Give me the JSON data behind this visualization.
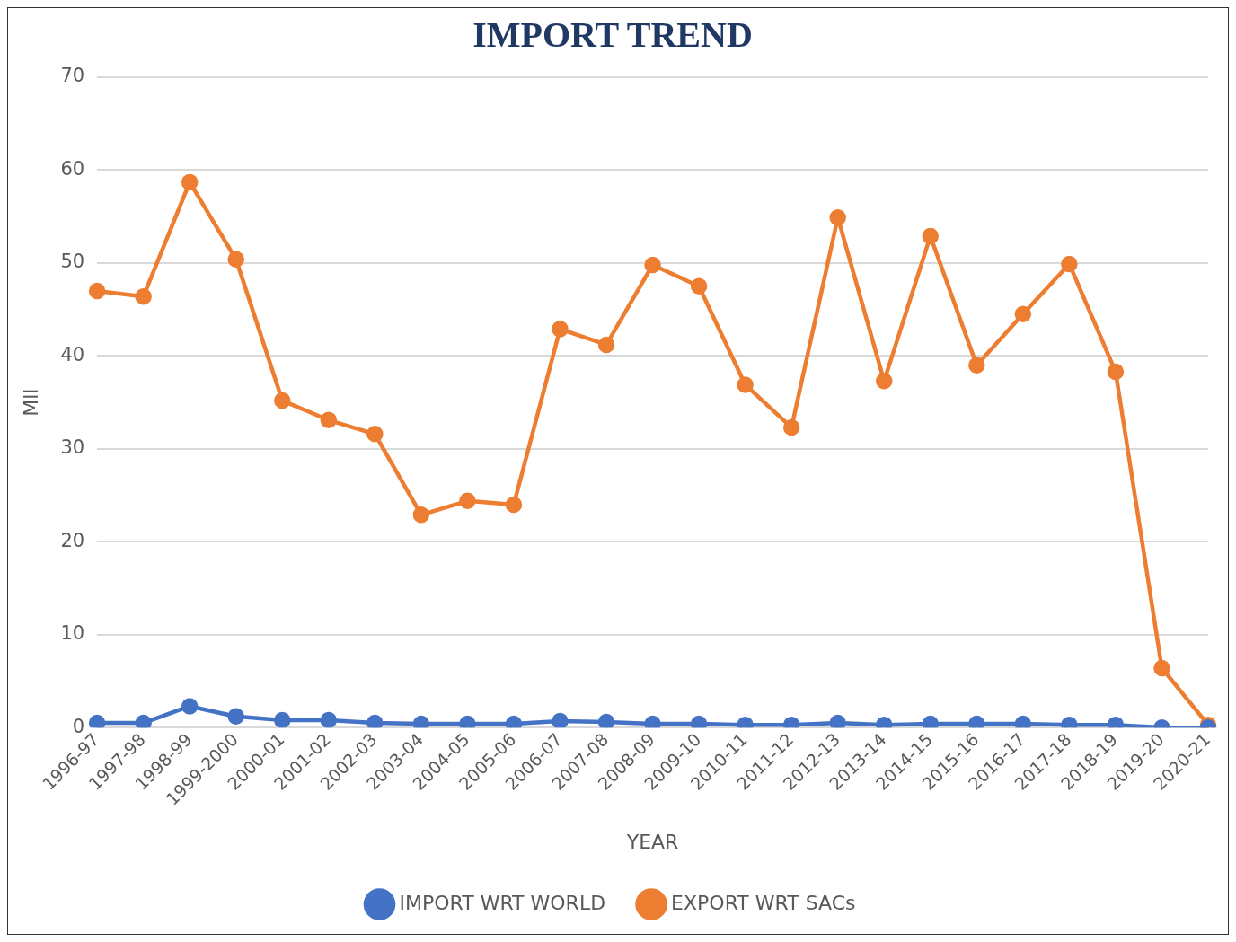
{
  "chart_data": {
    "type": "line",
    "title": "IMPORT TREND",
    "xlabel": "YEAR",
    "ylabel": "Mll",
    "categories": [
      "1996-97",
      "1997-98",
      "1998-99",
      "1999-2000",
      "2000-01",
      "2001-02",
      "2002-03",
      "2003-04",
      "2004-05",
      "2005-06",
      "2006-07",
      "2007-08",
      "2008-09",
      "2009-10",
      "2010-11",
      "2011-12",
      "2012-13",
      "2013-14",
      "2014-15",
      "2015-16",
      "2016-17",
      "2017-18",
      "2018-19",
      "2019-20",
      "2020-21"
    ],
    "series": [
      {
        "name": "IMPORT WRT WORLD",
        "color": "#4472c4",
        "values": [
          0.5,
          0.5,
          2.3,
          1.2,
          0.8,
          0.8,
          0.5,
          0.4,
          0.4,
          0.4,
          0.7,
          0.6,
          0.4,
          0.4,
          0.3,
          0.3,
          0.5,
          0.3,
          0.4,
          0.4,
          0.4,
          0.3,
          0.3,
          0.0,
          0.0
        ]
      },
      {
        "name": "EXPORT WRT SACs",
        "color": "#ed7d31",
        "values": [
          47.0,
          46.4,
          58.7,
          50.4,
          35.2,
          33.1,
          31.6,
          22.9,
          24.4,
          24.0,
          42.9,
          41.2,
          49.8,
          47.5,
          36.9,
          32.3,
          54.9,
          37.3,
          52.9,
          39.0,
          44.5,
          49.9,
          38.3,
          6.4,
          0.3
        ]
      }
    ],
    "ylim": [
      0,
      70
    ],
    "yticks": [
      0,
      10,
      20,
      30,
      40,
      50,
      60,
      70
    ],
    "grid": "y",
    "legend": "bottom",
    "marker": "circle",
    "line_style": "solid"
  }
}
